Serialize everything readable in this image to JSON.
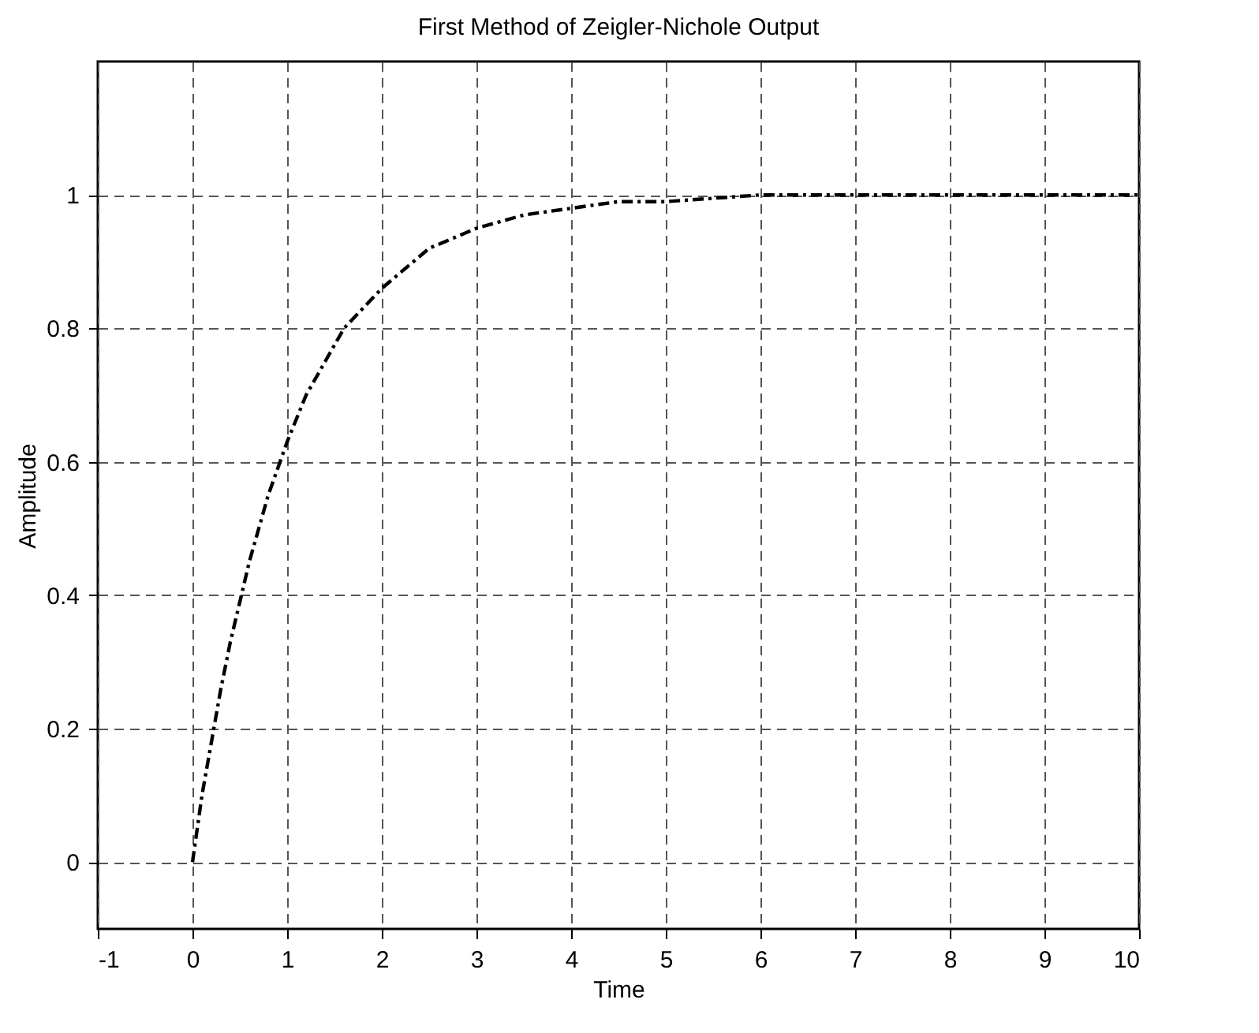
{
  "chart_data": {
    "type": "line",
    "title": "First Method of Zeigler-Nichole Output",
    "xlabel": "Time",
    "ylabel": "Amplitude",
    "x": [
      0,
      0.1,
      0.2,
      0.3,
      0.4,
      0.5,
      0.6,
      0.8,
      1,
      1.2,
      1.4,
      1.6,
      1.8,
      2,
      2.5,
      3,
      3.5,
      4,
      4.5,
      5,
      6,
      7,
      8,
      9,
      10
    ],
    "series": [
      {
        "color": "#000000",
        "values": [
          0,
          0.1,
          0.18,
          0.26,
          0.33,
          0.39,
          0.45,
          0.55,
          0.63,
          0.7,
          0.75,
          0.8,
          0.83,
          0.86,
          0.92,
          0.95,
          0.97,
          0.98,
          0.99,
          0.99,
          1.0,
          1.0,
          1.0,
          1.0,
          1.0
        ]
      }
    ],
    "xlim": [
      -1,
      10
    ],
    "xticks": [
      -1,
      0,
      1,
      2,
      3,
      4,
      5,
      6,
      7,
      8,
      9,
      10
    ],
    "ylim": [
      -0.1,
      1.2
    ],
    "yticks": [
      0,
      0.2,
      0.4,
      0.6,
      0.8,
      1
    ],
    "grid": true,
    "line_style": "dashed",
    "marker": "none"
  }
}
